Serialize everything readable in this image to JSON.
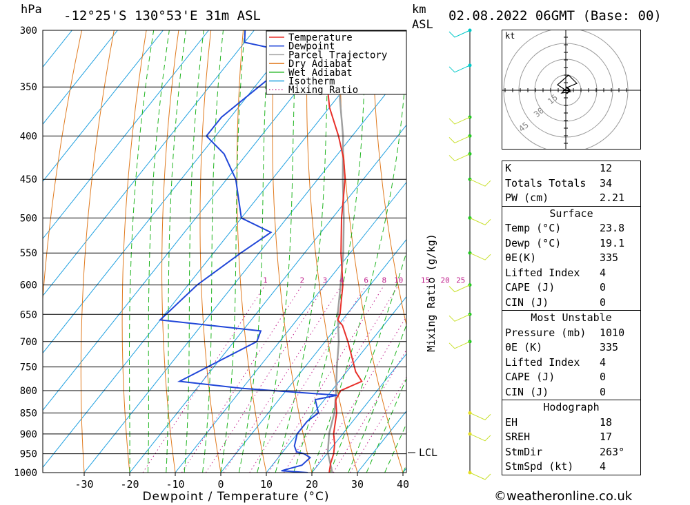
{
  "header": {
    "hpa_unit": "hPa",
    "location": "-12°25'S 130°53'E 31m ASL",
    "km_unit": "km",
    "asl": "ASL",
    "datetime": "02.08.2022 06GMT (Base: 00)"
  },
  "chart_data": {
    "type": "skew-t",
    "xlabel": "Dewpoint / Temperature (°C)",
    "ylabel": "",
    "right_axis_label": "Mixing Ratio (g/kg)",
    "pressure_levels": [
      300,
      350,
      400,
      450,
      500,
      550,
      600,
      650,
      700,
      750,
      800,
      850,
      900,
      950,
      1000
    ],
    "temp_ticks": [
      -30,
      -20,
      -10,
      0,
      10,
      20,
      30,
      40
    ],
    "mixing_ratio_labels": [
      "1",
      "2",
      "3",
      "4",
      "6",
      "8",
      "10",
      "15",
      "20",
      "25"
    ],
    "mixing_ratio_values": [
      1,
      2,
      3,
      4,
      6,
      8,
      10,
      15,
      20,
      25
    ],
    "lcl_label": "LCL",
    "lcl_pressure": 947,
    "legend": [
      "Temperature",
      "Dewpoint",
      "Parcel Trajectory",
      "Dry Adiabat",
      "Wet Adiabat",
      "Isotherm",
      "Mixing Ratio"
    ],
    "legend_position": "top-left",
    "colors": {
      "temperature": "#e8302a",
      "dewpoint": "#2046d8",
      "parcel": "#a0a0a0",
      "dry_adiabat": "#e07a1e",
      "wet_adiabat": "#1eb41e",
      "isotherm": "#1ea0e0",
      "mixing_ratio": "#c0208c",
      "wind": "#c8e02a"
    },
    "temperature": [
      [
        1000,
        23.8
      ],
      [
        975,
        22.5
      ],
      [
        950,
        21.5
      ],
      [
        925,
        20
      ],
      [
        900,
        18
      ],
      [
        850,
        15
      ],
      [
        820,
        12.5
      ],
      [
        800,
        12
      ],
      [
        780,
        15
      ],
      [
        760,
        12
      ],
      [
        700,
        5
      ],
      [
        670,
        1
      ],
      [
        660,
        -1
      ],
      [
        650,
        -1.5
      ],
      [
        600,
        -6
      ],
      [
        550,
        -12
      ],
      [
        500,
        -18
      ],
      [
        450,
        -24
      ],
      [
        425,
        -28
      ],
      [
        400,
        -33
      ],
      [
        370,
        -40
      ],
      [
        350,
        -44
      ],
      [
        330,
        -46
      ],
      [
        300,
        -50
      ]
    ],
    "dewpoint": [
      [
        1000,
        19.1
      ],
      [
        995,
        13
      ],
      [
        980,
        16.5
      ],
      [
        960,
        17
      ],
      [
        950,
        15
      ],
      [
        945,
        13
      ],
      [
        930,
        11.5
      ],
      [
        900,
        10
      ],
      [
        870,
        10
      ],
      [
        850,
        11
      ],
      [
        820,
        8
      ],
      [
        810,
        12
      ],
      [
        795,
        -10
      ],
      [
        780,
        -25
      ],
      [
        700,
        -15
      ],
      [
        680,
        -16
      ],
      [
        660,
        -40
      ],
      [
        600,
        -38
      ],
      [
        550,
        -34
      ],
      [
        520,
        -31
      ],
      [
        500,
        -40
      ],
      [
        450,
        -48
      ],
      [
        420,
        -55
      ],
      [
        400,
        -62
      ],
      [
        380,
        -62
      ],
      [
        320,
        -56
      ],
      [
        310,
        -70
      ],
      [
        300,
        -72
      ]
    ],
    "parcel": [
      [
        1000,
        24.5
      ],
      [
        947,
        20
      ],
      [
        900,
        17
      ],
      [
        850,
        14.5
      ],
      [
        800,
        11
      ],
      [
        750,
        7
      ],
      [
        700,
        3
      ],
      [
        650,
        -2
      ],
      [
        600,
        -6.5
      ],
      [
        550,
        -11.5
      ],
      [
        500,
        -17.5
      ],
      [
        450,
        -24.5
      ],
      [
        400,
        -32
      ],
      [
        350,
        -41.5
      ],
      [
        300,
        -53
      ]
    ]
  },
  "table": {
    "index": [
      {
        "label": "K",
        "value": "12"
      },
      {
        "label": "Totals Totals",
        "value": "34"
      },
      {
        "label": "PW (cm)",
        "value": "2.21"
      }
    ],
    "surface_title": "Surface",
    "surface": [
      {
        "label": "Temp (°C)",
        "value": "23.8"
      },
      {
        "label": "Dewp (°C)",
        "value": "19.1"
      },
      {
        "label": "θE(K)",
        "value": "335"
      },
      {
        "label": "Lifted Index",
        "value": "4"
      },
      {
        "label": "CAPE (J)",
        "value": "0"
      },
      {
        "label": "CIN (J)",
        "value": "0"
      }
    ],
    "mu_title": "Most Unstable",
    "mu": [
      {
        "label": "Pressure (mb)",
        "value": "1010"
      },
      {
        "label": "θE (K)",
        "value": "335"
      },
      {
        "label": "Lifted Index",
        "value": "4"
      },
      {
        "label": "CAPE (J)",
        "value": "0"
      },
      {
        "label": "CIN (J)",
        "value": "0"
      }
    ],
    "hodo_title": "Hodograph",
    "hodo": [
      {
        "label": "EH",
        "value": "18"
      },
      {
        "label": "SREH",
        "value": "17"
      },
      {
        "label": "StmDir",
        "value": "263°"
      },
      {
        "label": "StmSpd (kt)",
        "value": "4"
      }
    ]
  },
  "hodograph": {
    "unit_label": "kt",
    "ring_labels": [
      "15",
      "30",
      "45"
    ]
  },
  "copyright": "©weatheronline.co.uk"
}
